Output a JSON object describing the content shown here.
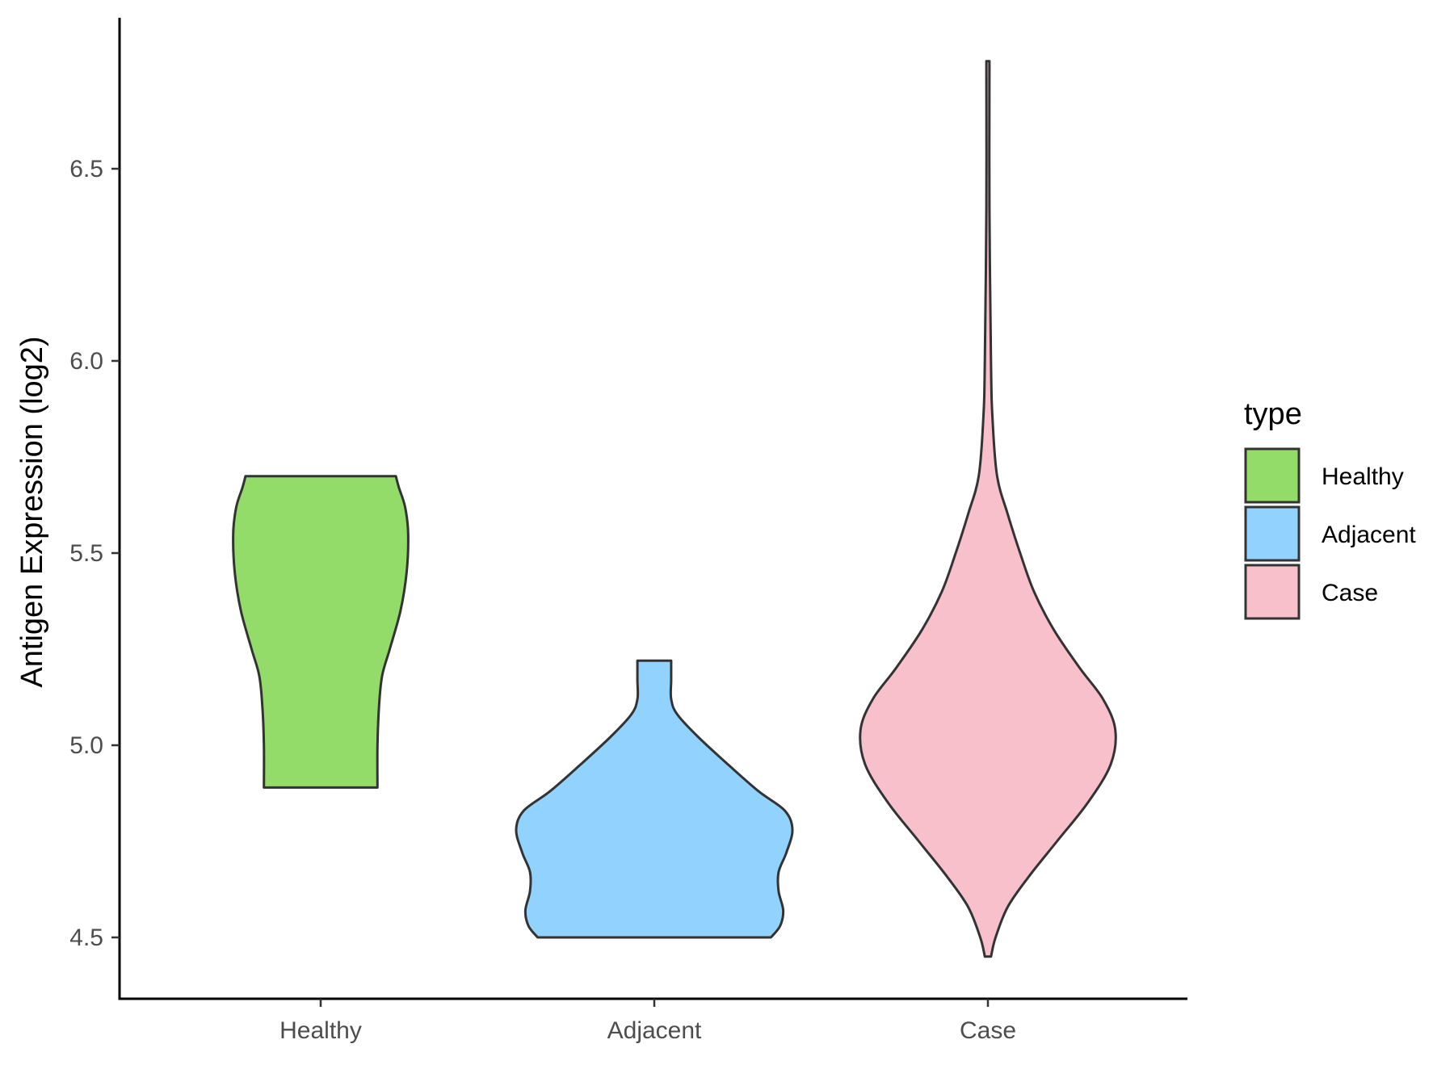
{
  "chart_data": {
    "type": "violin",
    "categories": [
      "Healthy",
      "Adjacent",
      "Case"
    ],
    "ylabel": "Antigen Expression (log2)",
    "xlabel": "",
    "yticks": [
      "4.5",
      "5.0",
      "5.5",
      "6.0",
      "6.5"
    ],
    "ylim": [
      4.33,
      6.88
    ],
    "grid": false,
    "legend": {
      "title": "type",
      "position": "right",
      "entries": [
        "Healthy",
        "Adjacent",
        "Case"
      ]
    },
    "colors": {
      "Healthy": "#93dc69",
      "Adjacent": "#92d2fe",
      "Case": "#f7c0cb",
      "outline": "#333333"
    },
    "series": [
      {
        "name": "Healthy",
        "min": 4.89,
        "max": 5.7,
        "profile": [
          [
            4.89,
            0.37
          ],
          [
            5.0,
            0.37
          ],
          [
            5.1,
            0.38
          ],
          [
            5.18,
            0.4
          ],
          [
            5.25,
            0.45
          ],
          [
            5.35,
            0.52
          ],
          [
            5.45,
            0.56
          ],
          [
            5.55,
            0.57
          ],
          [
            5.62,
            0.55
          ],
          [
            5.67,
            0.51
          ],
          [
            5.7,
            0.49
          ]
        ]
      },
      {
        "name": "Adjacent",
        "min": 4.5,
        "max": 5.22,
        "profile": [
          [
            4.5,
            0.76
          ],
          [
            4.53,
            0.82
          ],
          [
            4.57,
            0.84
          ],
          [
            4.62,
            0.81
          ],
          [
            4.67,
            0.81
          ],
          [
            4.72,
            0.86
          ],
          [
            4.78,
            0.9
          ],
          [
            4.83,
            0.85
          ],
          [
            4.88,
            0.68
          ],
          [
            4.95,
            0.48
          ],
          [
            5.02,
            0.29
          ],
          [
            5.08,
            0.15
          ],
          [
            5.12,
            0.11
          ],
          [
            5.17,
            0.11
          ],
          [
            5.22,
            0.11
          ]
        ]
      },
      {
        "name": "Case",
        "min": 4.45,
        "max": 6.78,
        "profile": [
          [
            4.45,
            0.02
          ],
          [
            4.5,
            0.05
          ],
          [
            4.58,
            0.13
          ],
          [
            4.66,
            0.27
          ],
          [
            4.75,
            0.45
          ],
          [
            4.85,
            0.65
          ],
          [
            4.95,
            0.8
          ],
          [
            5.04,
            0.83
          ],
          [
            5.12,
            0.75
          ],
          [
            5.2,
            0.6
          ],
          [
            5.3,
            0.43
          ],
          [
            5.4,
            0.3
          ],
          [
            5.5,
            0.21
          ],
          [
            5.6,
            0.13
          ],
          [
            5.7,
            0.06
          ],
          [
            5.85,
            0.03
          ],
          [
            6.0,
            0.02
          ],
          [
            6.4,
            0.01
          ],
          [
            6.78,
            0.01
          ]
        ]
      }
    ]
  }
}
